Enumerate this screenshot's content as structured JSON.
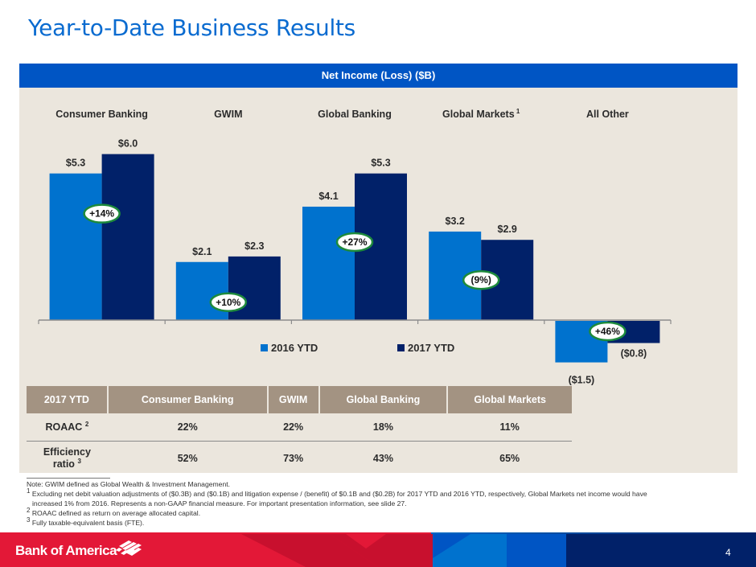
{
  "page": {
    "title": "Year-to-Date Business Results",
    "page_number": "4",
    "brand_name": "Bank of America",
    "brand_colors": {
      "red": "#e31837",
      "dark_red": "#c8102e",
      "blue": "#0067c5",
      "navy": "#012169"
    }
  },
  "panel": {
    "header": "Net Income (Loss) ($B)"
  },
  "chart_data": {
    "type": "bar",
    "title": "Net Income (Loss) ($B)",
    "categories": [
      "Consumer Banking",
      "GWIM",
      "Global Banking",
      "Global Markets",
      "All Other"
    ],
    "category_superscripts": [
      "",
      "",
      "",
      "1",
      ""
    ],
    "series": [
      {
        "name": "2016 YTD",
        "color": "#0072ce",
        "values": [
          5.3,
          2.1,
          4.1,
          3.2,
          -1.5
        ],
        "labels": [
          "$5.3",
          "$2.1",
          "$4.1",
          "$3.2",
          "($1.5)"
        ]
      },
      {
        "name": "2017 YTD",
        "color": "#012169",
        "values": [
          6.0,
          2.3,
          5.3,
          2.9,
          -0.8
        ],
        "labels": [
          "$6.0",
          "$2.3",
          "$5.3",
          "$2.9",
          "($0.8)"
        ]
      }
    ],
    "annotations": [
      "+14%",
      "+10%",
      "+27%",
      "(9%)",
      "+46%"
    ],
    "annotation_color": "#1e8a3c",
    "xlabel": "",
    "ylabel": "($B)",
    "ylim": [
      -1.6,
      6.5
    ],
    "grid": false,
    "legend_position": "bottom-center"
  },
  "table": {
    "headers": [
      "2017 YTD",
      "Consumer Banking",
      "GWIM",
      "Global Banking",
      "Global Markets"
    ],
    "rows": [
      {
        "label": "ROAAC",
        "sup": "2",
        "values": [
          "22%",
          "22%",
          "18%",
          "11%"
        ]
      },
      {
        "label_line1": "Efficiency",
        "label_line2": "ratio",
        "sup": "3",
        "values": [
          "52%",
          "73%",
          "43%",
          "65%"
        ]
      }
    ]
  },
  "footnotes": {
    "note": "Note: GWIM defined as Global Wealth & Investment Management.",
    "fn1_num": "1",
    "fn1_line1": "Excluding net debit valuation adjustments of ($0.3B) and ($0.1B) and litigation expense / (benefit) of $0.1B and ($0.2B) for 2017 YTD and 2016 YTD, respectively, Global Markets net income would have",
    "fn1_line2": "increased 1% from 2016. Represents a non-GAAP financial measure. For important presentation information, see slide 27.",
    "fn2_num": "2",
    "fn2": "ROAAC defined as return on average allocated capital.",
    "fn3_num": "3",
    "fn3": "Fully taxable-equivalent basis (FTE)."
  }
}
